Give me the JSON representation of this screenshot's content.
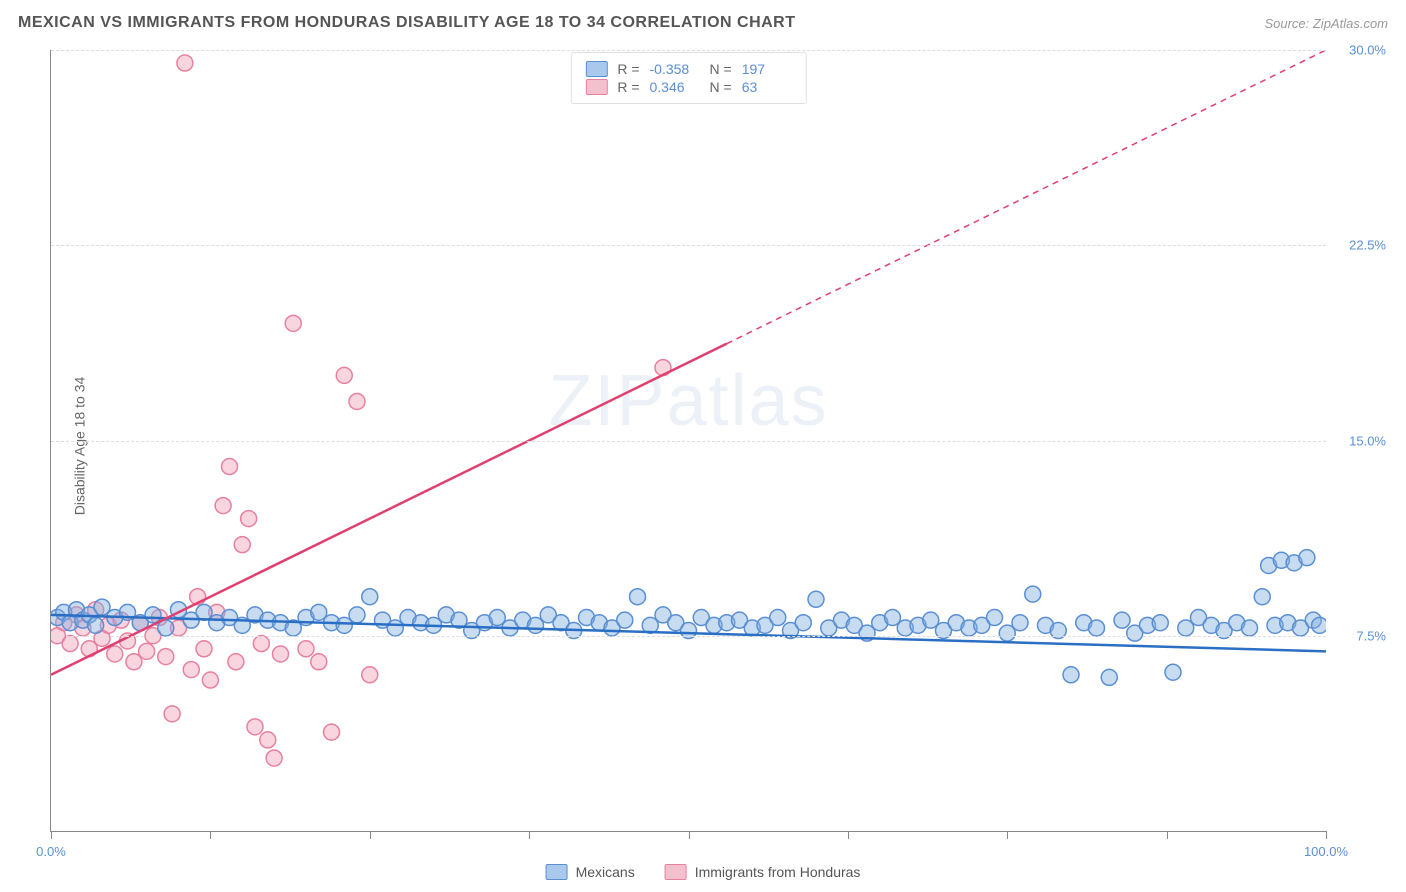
{
  "title": "MEXICAN VS IMMIGRANTS FROM HONDURAS DISABILITY AGE 18 TO 34 CORRELATION CHART",
  "source": "Source: ZipAtlas.com",
  "watermark": "ZIPatlas",
  "y_axis_label": "Disability Age 18 to 34",
  "chart": {
    "type": "scatter",
    "xlim": [
      0,
      100
    ],
    "ylim": [
      0,
      30
    ],
    "x_ticks": [
      0,
      12.5,
      25,
      37.5,
      50,
      62.5,
      75,
      87.5,
      100
    ],
    "x_tick_labels": {
      "0": "0.0%",
      "100": "100.0%"
    },
    "y_ticks": [
      7.5,
      15.0,
      22.5,
      30.0
    ],
    "y_tick_labels": [
      "7.5%",
      "15.0%",
      "22.5%",
      "30.0%"
    ],
    "grid_color": "#dddddd",
    "axis_color": "#888888",
    "background_color": "#ffffff",
    "marker_radius": 8,
    "marker_stroke_width": 1.5,
    "trend_line_width": 2.5
  },
  "series": {
    "mexicans": {
      "label": "Mexicans",
      "fill_color": "rgba(130, 175, 225, 0.45)",
      "stroke_color": "#5a8fd4",
      "swatch_fill": "#a8c8ec",
      "swatch_border": "#5a8fd4",
      "R": "-0.358",
      "N": "197",
      "trend_line": {
        "x1": 0,
        "y1": 8.3,
        "x2": 100,
        "y2": 6.9,
        "color": "#2a6fc4"
      },
      "points": [
        [
          0.5,
          8.2
        ],
        [
          1,
          8.4
        ],
        [
          1.5,
          8.0
        ],
        [
          2,
          8.5
        ],
        [
          2.5,
          8.1
        ],
        [
          3,
          8.3
        ],
        [
          3.5,
          7.9
        ],
        [
          4,
          8.6
        ],
        [
          5,
          8.2
        ],
        [
          6,
          8.4
        ],
        [
          7,
          8.0
        ],
        [
          8,
          8.3
        ],
        [
          9,
          7.8
        ],
        [
          10,
          8.5
        ],
        [
          11,
          8.1
        ],
        [
          12,
          8.4
        ],
        [
          13,
          8.0
        ],
        [
          14,
          8.2
        ],
        [
          15,
          7.9
        ],
        [
          16,
          8.3
        ],
        [
          17,
          8.1
        ],
        [
          18,
          8.0
        ],
        [
          19,
          7.8
        ],
        [
          20,
          8.2
        ],
        [
          21,
          8.4
        ],
        [
          22,
          8.0
        ],
        [
          23,
          7.9
        ],
        [
          24,
          8.3
        ],
        [
          25,
          9.0
        ],
        [
          26,
          8.1
        ],
        [
          27,
          7.8
        ],
        [
          28,
          8.2
        ],
        [
          29,
          8.0
        ],
        [
          30,
          7.9
        ],
        [
          31,
          8.3
        ],
        [
          32,
          8.1
        ],
        [
          33,
          7.7
        ],
        [
          34,
          8.0
        ],
        [
          35,
          8.2
        ],
        [
          36,
          7.8
        ],
        [
          37,
          8.1
        ],
        [
          38,
          7.9
        ],
        [
          39,
          8.3
        ],
        [
          40,
          8.0
        ],
        [
          41,
          7.7
        ],
        [
          42,
          8.2
        ],
        [
          43,
          8.0
        ],
        [
          44,
          7.8
        ],
        [
          45,
          8.1
        ],
        [
          46,
          9.0
        ],
        [
          47,
          7.9
        ],
        [
          48,
          8.3
        ],
        [
          49,
          8.0
        ],
        [
          50,
          7.7
        ],
        [
          51,
          8.2
        ],
        [
          52,
          7.9
        ],
        [
          53,
          8.0
        ],
        [
          54,
          8.1
        ],
        [
          55,
          7.8
        ],
        [
          56,
          7.9
        ],
        [
          57,
          8.2
        ],
        [
          58,
          7.7
        ],
        [
          59,
          8.0
        ],
        [
          60,
          8.9
        ],
        [
          61,
          7.8
        ],
        [
          62,
          8.1
        ],
        [
          63,
          7.9
        ],
        [
          64,
          7.6
        ],
        [
          65,
          8.0
        ],
        [
          66,
          8.2
        ],
        [
          67,
          7.8
        ],
        [
          68,
          7.9
        ],
        [
          69,
          8.1
        ],
        [
          70,
          7.7
        ],
        [
          71,
          8.0
        ],
        [
          72,
          7.8
        ],
        [
          73,
          7.9
        ],
        [
          74,
          8.2
        ],
        [
          75,
          7.6
        ],
        [
          76,
          8.0
        ],
        [
          77,
          9.1
        ],
        [
          78,
          7.9
        ],
        [
          79,
          7.7
        ],
        [
          80,
          6.0
        ],
        [
          81,
          8.0
        ],
        [
          82,
          7.8
        ],
        [
          83,
          5.9
        ],
        [
          84,
          8.1
        ],
        [
          85,
          7.6
        ],
        [
          86,
          7.9
        ],
        [
          87,
          8.0
        ],
        [
          88,
          6.1
        ],
        [
          89,
          7.8
        ],
        [
          90,
          8.2
        ],
        [
          91,
          7.9
        ],
        [
          92,
          7.7
        ],
        [
          93,
          8.0
        ],
        [
          94,
          7.8
        ],
        [
          95,
          9.0
        ],
        [
          95.5,
          10.2
        ],
        [
          96,
          7.9
        ],
        [
          96.5,
          10.4
        ],
        [
          97,
          8.0
        ],
        [
          97.5,
          10.3
        ],
        [
          98,
          7.8
        ],
        [
          98.5,
          10.5
        ],
        [
          99,
          8.1
        ],
        [
          99.5,
          7.9
        ]
      ]
    },
    "honduras": {
      "label": "Immigrants from Honduras",
      "fill_color": "rgba(240, 150, 175, 0.4)",
      "stroke_color": "#e8809f",
      "swatch_fill": "#f5c0ce",
      "swatch_border": "#e8809f",
      "R": "0.346",
      "N": "63",
      "trend_line": {
        "x1": 0,
        "y1": 6.0,
        "x2": 100,
        "y2": 30.0,
        "solid_until_x": 53,
        "color": "#e04070"
      },
      "points": [
        [
          0.5,
          7.5
        ],
        [
          1,
          8.0
        ],
        [
          1.5,
          7.2
        ],
        [
          2,
          8.3
        ],
        [
          2.5,
          7.8
        ],
        [
          3,
          7.0
        ],
        [
          3.5,
          8.5
        ],
        [
          4,
          7.4
        ],
        [
          4.5,
          7.9
        ],
        [
          5,
          6.8
        ],
        [
          5.5,
          8.1
        ],
        [
          6,
          7.3
        ],
        [
          6.5,
          6.5
        ],
        [
          7,
          8.0
        ],
        [
          7.5,
          6.9
        ],
        [
          8,
          7.5
        ],
        [
          8.5,
          8.2
        ],
        [
          9,
          6.7
        ],
        [
          9.5,
          4.5
        ],
        [
          10,
          7.8
        ],
        [
          10.5,
          29.5
        ],
        [
          11,
          6.2
        ],
        [
          11.5,
          9.0
        ],
        [
          12,
          7.0
        ],
        [
          12.5,
          5.8
        ],
        [
          13,
          8.4
        ],
        [
          13.5,
          12.5
        ],
        [
          14,
          14.0
        ],
        [
          14.5,
          6.5
        ],
        [
          15,
          11.0
        ],
        [
          15.5,
          12.0
        ],
        [
          16,
          4.0
        ],
        [
          16.5,
          7.2
        ],
        [
          17,
          3.5
        ],
        [
          17.5,
          2.8
        ],
        [
          18,
          6.8
        ],
        [
          19,
          19.5
        ],
        [
          20,
          7.0
        ],
        [
          21,
          6.5
        ],
        [
          22,
          3.8
        ],
        [
          23,
          17.5
        ],
        [
          24,
          16.5
        ],
        [
          25,
          6.0
        ],
        [
          48,
          17.8
        ]
      ]
    }
  },
  "stat_box": {
    "R_label": "R =",
    "N_label": "N ="
  },
  "legend": {
    "label1": "Mexicans",
    "label2": "Immigrants from Honduras"
  }
}
